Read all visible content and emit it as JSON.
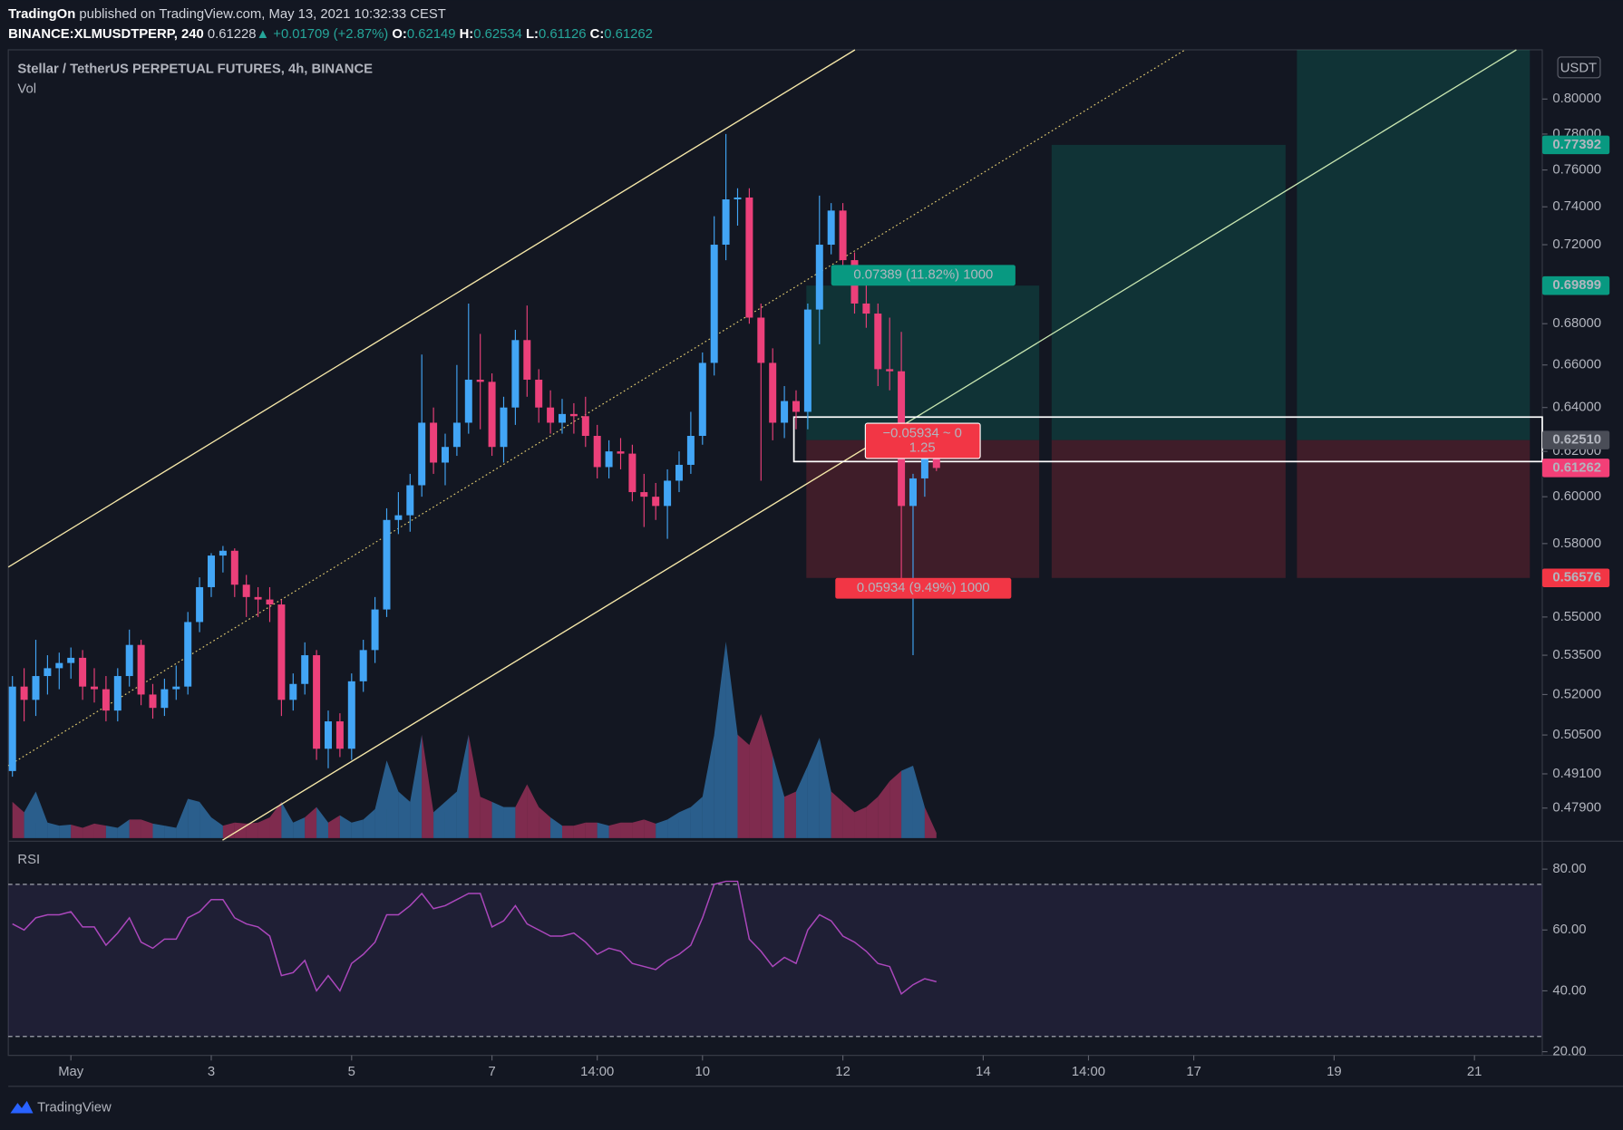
{
  "header": {
    "author": "TradingOn",
    "published": "published on TradingView.com, May 13, 2021 10:32:33 CEST",
    "symbol": "BINANCE:XLMUSDTPERP, 240",
    "last": "0.61228",
    "arrow": "▲",
    "change": "+0.01709 (+2.87%)",
    "ohlc": [
      {
        "key": "O:",
        "value": "0.62149"
      },
      {
        "key": "H:",
        "value": "0.62534"
      },
      {
        "key": "L:",
        "value": "0.61126"
      },
      {
        "key": "C:",
        "value": "0.61262"
      }
    ]
  },
  "footer": "TradingView",
  "chart_data": {
    "type": "candlestick",
    "title": "Stellar / TetherUS PERPETUAL FUTURES, 4h, BINANCE",
    "currency": "USDT",
    "log_scale": true,
    "grid": false,
    "up_color": "#42a5f5",
    "down_color": "#ec407a",
    "ylim": [
      0.468,
      0.829
    ],
    "yticks": [
      {
        "value": 0.8,
        "label": "0.80000"
      },
      {
        "value": 0.78,
        "label": "0.78000"
      },
      {
        "value": 0.76,
        "label": "0.76000"
      },
      {
        "value": 0.74,
        "label": "0.74000"
      },
      {
        "value": 0.72,
        "label": "0.72000"
      },
      {
        "value": 0.68,
        "label": "0.68000"
      },
      {
        "value": 0.66,
        "label": "0.66000"
      },
      {
        "value": 0.64,
        "label": "0.64000"
      },
      {
        "value": 0.62,
        "label": "0.62000"
      },
      {
        "value": 0.6,
        "label": "0.60000"
      },
      {
        "value": 0.58,
        "label": "0.58000"
      },
      {
        "value": 0.55,
        "label": "0.55000"
      },
      {
        "value": 0.535,
        "label": "0.53500"
      },
      {
        "value": 0.52,
        "label": "0.52000"
      },
      {
        "value": 0.505,
        "label": "0.50500"
      },
      {
        "value": 0.491,
        "label": "0.49100"
      },
      {
        "value": 0.479,
        "label": "0.47900"
      }
    ],
    "xticks": [
      {
        "value": 5,
        "label": "May"
      },
      {
        "value": 17,
        "label": "3"
      },
      {
        "value": 29,
        "label": "5"
      },
      {
        "value": 41,
        "label": "7"
      },
      {
        "value": 50,
        "label": "14:00"
      },
      {
        "value": 59,
        "label": "10"
      },
      {
        "value": 71,
        "label": "12"
      },
      {
        "value": 83,
        "label": "14"
      },
      {
        "value": 92,
        "label": "14:00"
      },
      {
        "value": 101,
        "label": "17"
      },
      {
        "value": 113,
        "label": "19"
      },
      {
        "value": 125,
        "label": "21"
      }
    ],
    "ohlc": [
      [
        0.492,
        0.527,
        0.49,
        0.523
      ],
      [
        0.523,
        0.53,
        0.51,
        0.518
      ],
      [
        0.518,
        0.541,
        0.512,
        0.527
      ],
      [
        0.527,
        0.535,
        0.52,
        0.53
      ],
      [
        0.53,
        0.536,
        0.522,
        0.532
      ],
      [
        0.532,
        0.538,
        0.526,
        0.534
      ],
      [
        0.534,
        0.537,
        0.518,
        0.523
      ],
      [
        0.523,
        0.53,
        0.517,
        0.522
      ],
      [
        0.522,
        0.527,
        0.51,
        0.514
      ],
      [
        0.514,
        0.53,
        0.51,
        0.527
      ],
      [
        0.527,
        0.545,
        0.523,
        0.539
      ],
      [
        0.539,
        0.541,
        0.516,
        0.52
      ],
      [
        0.52,
        0.524,
        0.511,
        0.515
      ],
      [
        0.515,
        0.526,
        0.512,
        0.522
      ],
      [
        0.522,
        0.531,
        0.518,
        0.523
      ],
      [
        0.523,
        0.552,
        0.52,
        0.548
      ],
      [
        0.548,
        0.566,
        0.544,
        0.562
      ],
      [
        0.562,
        0.576,
        0.558,
        0.575
      ],
      [
        0.575,
        0.579,
        0.568,
        0.577
      ],
      [
        0.577,
        0.578,
        0.558,
        0.563
      ],
      [
        0.563,
        0.567,
        0.55,
        0.558
      ],
      [
        0.558,
        0.562,
        0.55,
        0.557
      ],
      [
        0.557,
        0.562,
        0.548,
        0.555
      ],
      [
        0.555,
        0.557,
        0.512,
        0.518
      ],
      [
        0.518,
        0.528,
        0.514,
        0.524
      ],
      [
        0.524,
        0.54,
        0.52,
        0.535
      ],
      [
        0.535,
        0.537,
        0.496,
        0.5
      ],
      [
        0.5,
        0.514,
        0.493,
        0.51
      ],
      [
        0.51,
        0.513,
        0.497,
        0.5
      ],
      [
        0.5,
        0.528,
        0.496,
        0.525
      ],
      [
        0.525,
        0.541,
        0.521,
        0.537
      ],
      [
        0.537,
        0.558,
        0.532,
        0.553
      ],
      [
        0.553,
        0.595,
        0.55,
        0.59
      ],
      [
        0.59,
        0.602,
        0.584,
        0.592
      ],
      [
        0.592,
        0.61,
        0.585,
        0.605
      ],
      [
        0.605,
        0.665,
        0.6,
        0.633
      ],
      [
        0.633,
        0.64,
        0.61,
        0.615
      ],
      [
        0.615,
        0.628,
        0.605,
        0.622
      ],
      [
        0.622,
        0.66,
        0.618,
        0.633
      ],
      [
        0.633,
        0.69,
        0.628,
        0.653
      ],
      [
        0.653,
        0.675,
        0.63,
        0.652
      ],
      [
        0.652,
        0.656,
        0.618,
        0.622
      ],
      [
        0.622,
        0.645,
        0.615,
        0.64
      ],
      [
        0.64,
        0.677,
        0.632,
        0.672
      ],
      [
        0.672,
        0.689,
        0.645,
        0.653
      ],
      [
        0.653,
        0.658,
        0.633,
        0.64
      ],
      [
        0.64,
        0.648,
        0.628,
        0.633
      ],
      [
        0.633,
        0.644,
        0.628,
        0.637
      ],
      [
        0.637,
        0.642,
        0.628,
        0.636
      ],
      [
        0.636,
        0.645,
        0.622,
        0.627
      ],
      [
        0.627,
        0.632,
        0.608,
        0.613
      ],
      [
        0.613,
        0.625,
        0.608,
        0.62
      ],
      [
        0.62,
        0.626,
        0.612,
        0.619
      ],
      [
        0.619,
        0.623,
        0.598,
        0.602
      ],
      [
        0.602,
        0.61,
        0.587,
        0.6
      ],
      [
        0.6,
        0.606,
        0.59,
        0.596
      ],
      [
        0.596,
        0.612,
        0.582,
        0.607
      ],
      [
        0.607,
        0.62,
        0.602,
        0.614
      ],
      [
        0.614,
        0.638,
        0.61,
        0.627
      ],
      [
        0.627,
        0.666,
        0.623,
        0.661
      ],
      [
        0.661,
        0.735,
        0.655,
        0.72
      ],
      [
        0.72,
        0.78,
        0.712,
        0.744
      ],
      [
        0.744,
        0.75,
        0.73,
        0.745
      ],
      [
        0.745,
        0.75,
        0.68,
        0.683
      ],
      [
        0.683,
        0.69,
        0.607,
        0.661
      ],
      [
        0.661,
        0.668,
        0.625,
        0.633
      ],
      [
        0.633,
        0.65,
        0.626,
        0.643
      ],
      [
        0.643,
        0.648,
        0.63,
        0.638
      ],
      [
        0.638,
        0.69,
        0.63,
        0.687
      ],
      [
        0.687,
        0.746,
        0.67,
        0.72
      ],
      [
        0.72,
        0.742,
        0.715,
        0.738
      ],
      [
        0.738,
        0.742,
        0.708,
        0.712
      ],
      [
        0.712,
        0.716,
        0.685,
        0.69
      ],
      [
        0.69,
        0.7,
        0.678,
        0.685
      ],
      [
        0.685,
        0.69,
        0.65,
        0.658
      ],
      [
        0.658,
        0.683,
        0.648,
        0.657
      ],
      [
        0.657,
        0.676,
        0.565,
        0.596
      ],
      [
        0.596,
        0.61,
        0.535,
        0.608
      ],
      [
        0.608,
        0.622,
        0.6,
        0.621
      ],
      [
        0.62149,
        0.62534,
        0.61126,
        0.61262
      ]
    ],
    "volume": {
      "label": "Vol",
      "values": [
        35,
        25,
        45,
        15,
        12,
        13,
        10,
        14,
        12,
        10,
        18,
        18,
        14,
        12,
        10,
        38,
        35,
        20,
        12,
        15,
        14,
        15,
        20,
        35,
        15,
        20,
        30,
        15,
        22,
        15,
        18,
        28,
        75,
        45,
        35,
        100,
        25,
        35,
        45,
        100,
        40,
        35,
        30,
        30,
        52,
        30,
        20,
        12,
        12,
        15,
        15,
        12,
        15,
        15,
        18,
        14,
        18,
        25,
        30,
        40,
        100,
        190,
        100,
        90,
        120,
        80,
        40,
        45,
        70,
        97,
        45,
        35,
        25,
        30,
        40,
        55,
        65,
        70,
        30,
        5
      ]
    },
    "rsi": {
      "label": "RSI",
      "color": "#ab47bc",
      "ylim": [
        18.8,
        88.5
      ],
      "bands": [
        25,
        75
      ],
      "yticks": [
        {
          "value": 80,
          "label": "80.00"
        },
        {
          "value": 60,
          "label": "60.00"
        },
        {
          "value": 40,
          "label": "40.00"
        },
        {
          "value": 20,
          "label": "20.00"
        }
      ],
      "values": [
        62,
        60,
        64,
        65,
        65,
        66,
        61,
        61,
        55,
        59,
        64,
        56,
        54,
        57,
        57,
        64,
        66,
        70,
        70,
        64,
        62,
        61,
        58,
        45,
        46,
        50,
        40,
        45,
        40,
        49,
        52,
        56,
        65,
        65,
        68,
        72,
        67,
        68,
        70,
        72,
        72,
        61,
        63,
        68,
        62,
        60,
        58,
        58,
        59,
        56,
        52,
        54,
        53,
        49,
        48,
        47,
        50,
        52,
        55,
        64,
        75,
        76,
        76,
        57,
        53,
        48,
        51,
        49,
        60,
        65,
        63,
        58,
        56,
        53,
        49,
        48,
        39,
        42,
        44,
        43
      ]
    },
    "price_labels": [
      {
        "value": 0.77392,
        "label": "0.77392",
        "color": "#089981"
      },
      {
        "value": 0.69899,
        "label": "0.69899",
        "color": "#089981"
      },
      {
        "value": 0.6251,
        "label": "0.62510",
        "color": "#4a4d57"
      },
      {
        "value": 0.61262,
        "label": "0.61262",
        "color": "#f23f77"
      },
      {
        "value": 0.56576,
        "label": "0.56576",
        "color": "#f23645"
      }
    ],
    "position": {
      "entry": 0.6251,
      "target": 0.69899,
      "next_target": 0.77392,
      "stop": 0.56576,
      "profit_label": "0.07389 (11.82%) 1000",
      "loss_label": "0.05934 (9.49%) 1000",
      "pnl_label": "−0.05934 ~ 0",
      "ratio_label": "1.25"
    }
  }
}
